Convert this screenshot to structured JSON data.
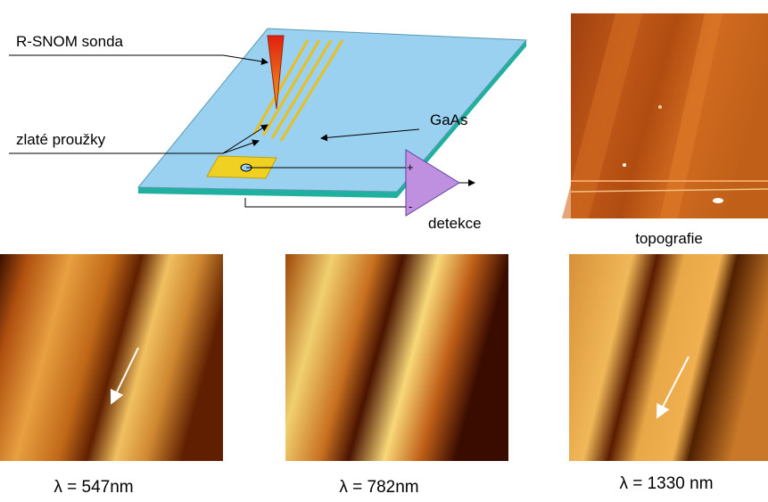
{
  "diagram": {
    "labels": {
      "probe": "R-SNOM sonda",
      "strips": "zlaté proužky",
      "substrate": "GaAs",
      "detection": "detekce",
      "plus": "+",
      "minus": "-"
    },
    "images": [
      {
        "caption": "topografie"
      },
      {
        "caption": "λ = 547nm"
      },
      {
        "caption": "λ = 782nm"
      },
      {
        "caption": "λ = 1330 nm"
      }
    ]
  }
}
